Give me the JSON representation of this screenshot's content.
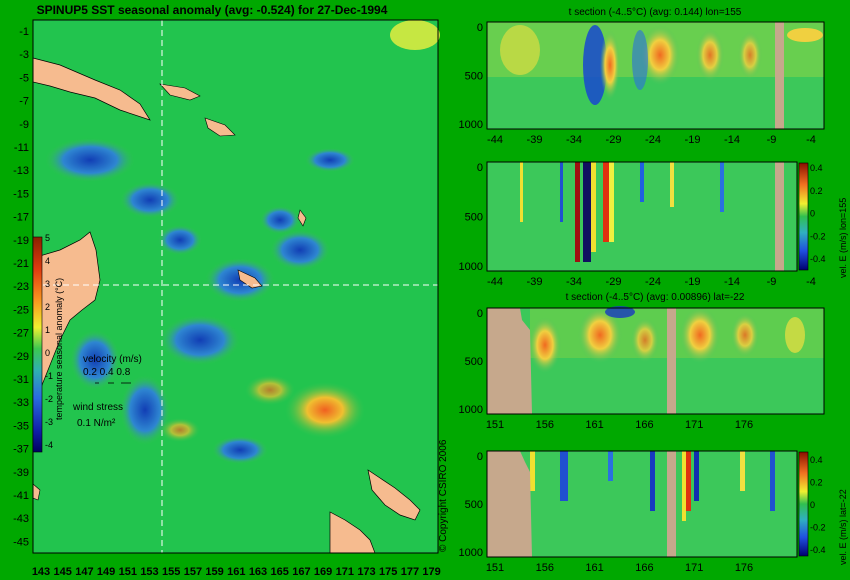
{
  "title": "SPINUP5 SST seasonal anomaly (avg: -0.524) for 27-Dec-1994",
  "copyright": "© Copyright CSIRO 2006",
  "colors": {
    "background": "#00a800",
    "land": "#f6bb8f",
    "section_land": "#c6a88c",
    "ocean": "#22c44e",
    "title": "#000000"
  },
  "map": {
    "lat_ticks": [
      "-1",
      "-3",
      "-5",
      "-7",
      "-9",
      "-11",
      "-13",
      "-15",
      "-17",
      "-19",
      "-21",
      "-23",
      "-25",
      "-27",
      "-29",
      "-31",
      "-33",
      "-35",
      "-37",
      "-39",
      "-41",
      "-43",
      "-45"
    ],
    "lon_ticks": [
      "143",
      "145",
      "147",
      "149",
      "151",
      "153",
      "155",
      "157",
      "159",
      "161",
      "163",
      "165",
      "167",
      "169",
      "171",
      "173",
      "175",
      "177",
      "179"
    ],
    "colorbar": {
      "label": "temperature seasonal anomaly (°C)",
      "ticks": [
        "5",
        "4",
        "3",
        "2",
        "1",
        "0",
        "-1",
        "-2",
        "-3",
        "-4"
      ]
    },
    "velocity_legend": {
      "title": "velocity (m/s)",
      "values": "0.2 0.4 0.8"
    },
    "wind_legend": {
      "title": "wind stress",
      "value": "0.1 N/m²"
    },
    "crosshair": {
      "lon": 155,
      "lat": -22
    }
  },
  "panels": [
    {
      "title": "t section (-4..5°C) (avg: 0.144) lon=155",
      "y_ticks": [
        "0",
        "500",
        "1000"
      ],
      "x_ticks": [
        "-44",
        "-39",
        "-34",
        "-29",
        "-24",
        "-19",
        "-14",
        "-9",
        "-4"
      ],
      "colorbar": null
    },
    {
      "title": "",
      "y_ticks": [
        "0",
        "500",
        "1000"
      ],
      "x_ticks": [
        "-44",
        "-39",
        "-34",
        "-29",
        "-24",
        "-19",
        "-14",
        "-9",
        "-4"
      ],
      "colorbar": {
        "label": "vel. E (m/s) lon=155",
        "ticks": [
          "0.4",
          "0.2",
          "0",
          "-0.2",
          "-0.4"
        ]
      }
    },
    {
      "title": "t section (-4..5°C) (avg: 0.00896) lat=-22",
      "y_ticks": [
        "0",
        "500",
        "1000"
      ],
      "x_ticks": [
        "151",
        "156",
        "161",
        "166",
        "171",
        "176"
      ],
      "colorbar": null
    },
    {
      "title": "",
      "y_ticks": [
        "0",
        "500",
        "1000"
      ],
      "x_ticks": [
        "151",
        "156",
        "161",
        "166",
        "171",
        "176"
      ],
      "colorbar": {
        "label": "vel. E (m/s) lat=-22",
        "ticks": [
          "0.4",
          "0.2",
          "0",
          "-0.2",
          "-0.4"
        ]
      }
    }
  ],
  "chart_data": [
    {
      "type": "heatmap",
      "title": "SPINUP5 SST seasonal anomaly (avg: -0.524) for 27-Dec-1994",
      "xlabel": "",
      "ylabel": "",
      "xlim": [
        142,
        180
      ],
      "ylim": [
        -45.5,
        0
      ],
      "colorbar_label": "temperature seasonal anomaly (°C)",
      "colorbar_range": [
        -4,
        5
      ],
      "avg": -0.524
    },
    {
      "type": "heatmap",
      "title": "t section (-4..5°C) (avg: 0.144) lon=155",
      "xlim": [
        -45,
        0
      ],
      "ylim": [
        1050,
        0
      ],
      "avg": 0.144
    },
    {
      "type": "heatmap",
      "title": "",
      "xlim": [
        -45,
        0
      ],
      "ylim": [
        1050,
        0
      ],
      "colorbar_label": "vel. E (m/s) lon=155",
      "colorbar_range": [
        -0.4,
        0.4
      ]
    },
    {
      "type": "heatmap",
      "title": "t section (-4..5°C) (avg: 0.00896) lat=-22",
      "xlim": [
        149.5,
        180
      ],
      "ylim": [
        1050,
        0
      ],
      "avg": 0.00896
    },
    {
      "type": "heatmap",
      "title": "",
      "xlim": [
        149.5,
        180
      ],
      "ylim": [
        1050,
        0
      ],
      "colorbar_label": "vel. E (m/s) lat=-22",
      "colorbar_range": [
        -0.4,
        0.4
      ]
    }
  ]
}
